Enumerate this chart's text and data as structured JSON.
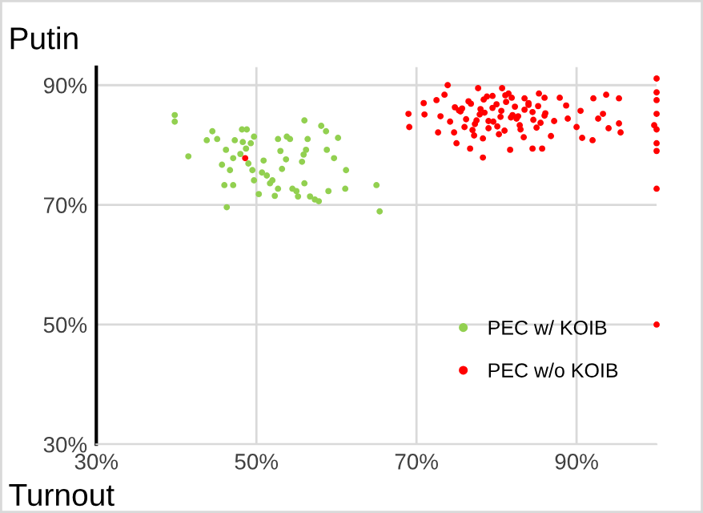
{
  "chart_data": {
    "type": "scatter",
    "xlabel": "Turnout",
    "ylabel": "Putin",
    "xlim": [
      30,
      100
    ],
    "ylim": [
      30,
      93
    ],
    "xticks": [
      {
        "value": 30,
        "label": "30%"
      },
      {
        "value": 50,
        "label": "50%"
      },
      {
        "value": 70,
        "label": "70%"
      },
      {
        "value": 90,
        "label": "90%"
      }
    ],
    "yticks": [
      {
        "value": 30,
        "label": "30%"
      },
      {
        "value": 50,
        "label": "50%"
      },
      {
        "value": 70,
        "label": "70%"
      },
      {
        "value": 90,
        "label": "90%"
      }
    ],
    "grid": true,
    "legend": "bottom right",
    "marker": "circle",
    "series": [
      {
        "name": "PEC w/ KOIB",
        "color": "#92d050",
        "x": [
          39.8,
          39.8,
          41.5,
          43.8,
          44.5,
          45.1,
          45.7,
          46.2,
          46.7,
          46,
          47.1,
          46.3,
          47.1,
          47.3,
          48.2,
          48.8,
          48.3,
          48,
          48.7,
          49.3,
          49.7,
          49,
          49.5,
          49.7,
          50.3,
          50.7,
          50.9,
          51.3,
          51.7,
          52,
          52.3,
          52.7,
          52.7,
          53,
          53.2,
          53.7,
          53.8,
          54.2,
          54.5,
          55,
          55.2,
          55.7,
          55.9,
          56,
          56.2,
          56.4,
          56,
          56.7,
          57.3,
          57.8,
          58.1,
          58.7,
          58.8,
          59,
          59.7,
          60.2,
          61.2,
          61.1,
          65,
          65.4
        ],
        "values": [
          85.0,
          83.9,
          78.1,
          80.8,
          82.3,
          81.0,
          76.7,
          79.2,
          75.8,
          73.3,
          73.3,
          69.6,
          77.8,
          80.8,
          82.6,
          82.6,
          80.5,
          78.5,
          79.4,
          80.3,
          81.4,
          76.9,
          75.8,
          74.1,
          71.8,
          75.4,
          77.4,
          74.9,
          73.6,
          74.1,
          71.5,
          72.7,
          81.0,
          79.0,
          76.0,
          77.6,
          81.4,
          81.0,
          72.7,
          72.3,
          71.4,
          77.2,
          78.4,
          73.6,
          79.2,
          81.0,
          84.1,
          71.4,
          70.9,
          70.6,
          83.2,
          82.3,
          79.2,
          72.3,
          77.8,
          81.2,
          75.8,
          72.7,
          73.3,
          68.9
        ]
      },
      {
        "name": "PEC w/o KOIB",
        "color": "#ff0000",
        "x": [
          48.6,
          69,
          69.1,
          70.9,
          71,
          72.5,
          72.7,
          73,
          73.9,
          73.5,
          74.2,
          74.7,
          75,
          75.7,
          76.7,
          77.7,
          78.3,
          78.3,
          80.7,
          81.7,
          84.5,
          85.7,
          85.3,
          86,
          87.9,
          88.7,
          88.9,
          90,
          90.5,
          90.7,
          92,
          92.1,
          92.7,
          93.3,
          93.7,
          94,
          95.3,
          95.3,
          95.5,
          100,
          100,
          100,
          100,
          99.7,
          100,
          100,
          100,
          100,
          100,
          75.5,
          76.2,
          76.8,
          77.3,
          77.9,
          78.4,
          79,
          79.5,
          80.1,
          80.6,
          81.2,
          81.8,
          82.3,
          82.9,
          83.5,
          84,
          84.6,
          85.2,
          86.1,
          76,
          77,
          78,
          79,
          80,
          81,
          82,
          83,
          84,
          85,
          86,
          76.5,
          77.5,
          78.5,
          79.5,
          80.5,
          81.5,
          82.5,
          83.5,
          84.5,
          85.5,
          77.2,
          78.8,
          80.3,
          81.9,
          83.4,
          79.6,
          81.1,
          82.7,
          74.8,
          86.8,
          75.3,
          87.2
        ],
        "values": [
          77.8,
          85.2,
          83.0,
          87.0,
          85.1,
          87.5,
          82.1,
          84.8,
          90.0,
          88.4,
          83.9,
          82.1,
          80.3,
          86.1,
          79.4,
          89.5,
          77.9,
          81.1,
          89.5,
          79.2,
          79.4,
          79.4,
          88.6,
          87.9,
          87.9,
          86.6,
          84.4,
          83.0,
          85.7,
          81.2,
          80.8,
          87.8,
          84.4,
          85.2,
          88.4,
          82.8,
          87.8,
          83.6,
          82.1,
          91.1,
          88.8,
          87.5,
          85.2,
          83.3,
          82.6,
          80.3,
          79.0,
          72.7,
          50.0,
          85.6,
          84.3,
          86.9,
          83.5,
          85.1,
          87.6,
          84.0,
          86.2,
          83.1,
          85.7,
          87.2,
          84.6,
          86.4,
          83.3,
          85.9,
          87.0,
          84.2,
          86.5,
          85.3,
          83.0,
          82.5,
          86.0,
          82.8,
          86.8,
          82.4,
          85.0,
          82.6,
          86.7,
          82.9,
          84.9,
          87.3,
          84.1,
          85.4,
          88.2,
          84.7,
          88.6,
          84.4,
          87.8,
          85.5,
          83.7,
          81.6,
          88.1,
          81.8,
          87.9,
          81.3,
          83.9,
          88.3,
          84.8,
          86.3,
          81.5,
          85.8,
          84.0
        ]
      }
    ]
  }
}
